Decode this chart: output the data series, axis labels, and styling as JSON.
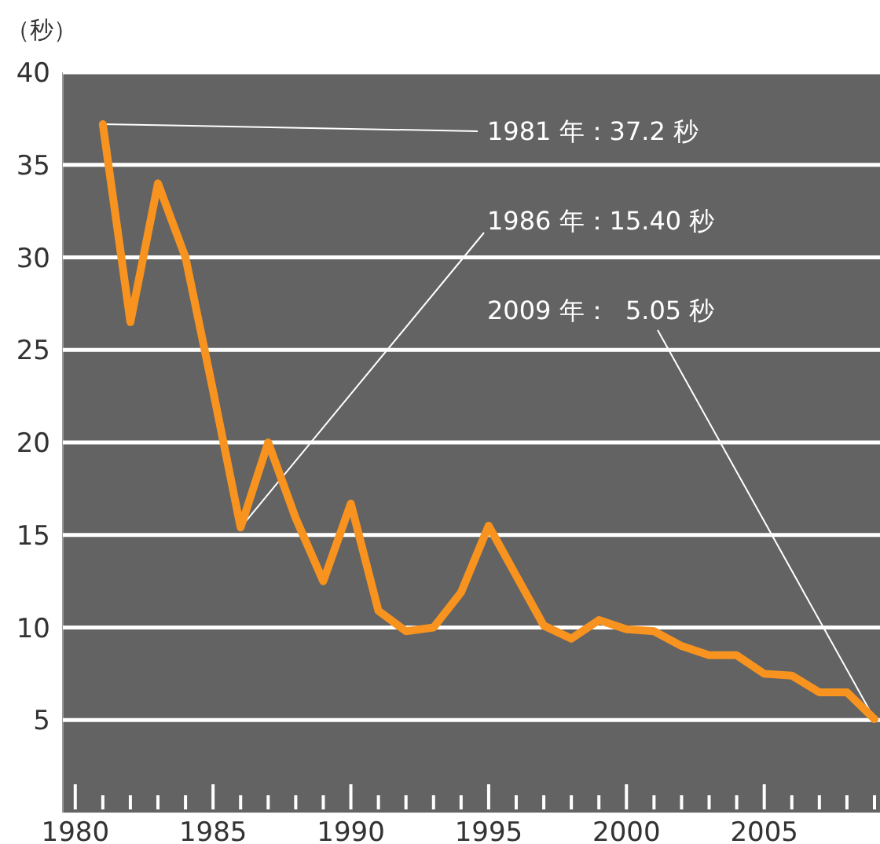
{
  "chart_data": {
    "type": "line",
    "ylabel": "（秒）",
    "x": [
      1981,
      1982,
      1983,
      1984,
      1985,
      1986,
      1987,
      1988,
      1989,
      1990,
      1991,
      1992,
      1993,
      1994,
      1995,
      1996,
      1997,
      1998,
      1999,
      2000,
      2001,
      2002,
      2003,
      2004,
      2005,
      2006,
      2007,
      2008,
      2009
    ],
    "series": [
      {
        "color": "#f7931e",
        "values": [
          37.2,
          26.5,
          34.0,
          30.0,
          22.8,
          15.4,
          20.0,
          15.9,
          12.5,
          16.7,
          10.9,
          9.8,
          10.0,
          11.9,
          15.5,
          12.8,
          10.1,
          9.4,
          10.4,
          9.9,
          9.8,
          9.0,
          8.5,
          8.5,
          7.5,
          7.4,
          6.5,
          6.5,
          5.05
        ]
      }
    ],
    "xlim": [
      1979.55,
      2009.2
    ],
    "ylim": [
      0,
      40
    ],
    "xticks": [
      1980,
      {
        "value": 1981,
        "label": null
      },
      {
        "value": 1982,
        "label": null
      },
      {
        "value": 1983,
        "label": null
      },
      {
        "value": 1984,
        "label": null
      },
      1985,
      {
        "value": 1986,
        "label": null
      },
      {
        "value": 1987,
        "label": null
      },
      {
        "value": 1988,
        "label": null
      },
      {
        "value": 1989,
        "label": null
      },
      1990,
      {
        "value": 1991,
        "label": null
      },
      {
        "value": 1992,
        "label": null
      },
      {
        "value": 1993,
        "label": null
      },
      {
        "value": 1994,
        "label": null
      },
      1995,
      {
        "value": 1996,
        "label": null
      },
      {
        "value": 1997,
        "label": null
      },
      {
        "value": 1998,
        "label": null
      },
      {
        "value": 1999,
        "label": null
      },
      2000,
      {
        "value": 2001,
        "label": null
      },
      {
        "value": 2002,
        "label": null
      },
      {
        "value": 2003,
        "label": null
      },
      {
        "value": 2004,
        "label": null
      },
      2005,
      {
        "value": 2006,
        "label": null
      },
      {
        "value": 2007,
        "label": null
      },
      {
        "value": 2008,
        "label": null
      },
      {
        "value": 2009,
        "label": null
      }
    ],
    "yticks": [
      5,
      10,
      15,
      20,
      25,
      30,
      35,
      40
    ],
    "grid": "y",
    "marker": "none",
    "line_style": "solid",
    "annotations": [
      {
        "text": "1981 年：37.2 秒",
        "x": 1981,
        "y": 37.2
      },
      {
        "text": "1986 年：15.40 秒",
        "x": 1986,
        "y": 15.4
      },
      {
        "text": "2009 年：  5.05 秒",
        "x": 2009,
        "y": 5.05
      }
    ]
  }
}
